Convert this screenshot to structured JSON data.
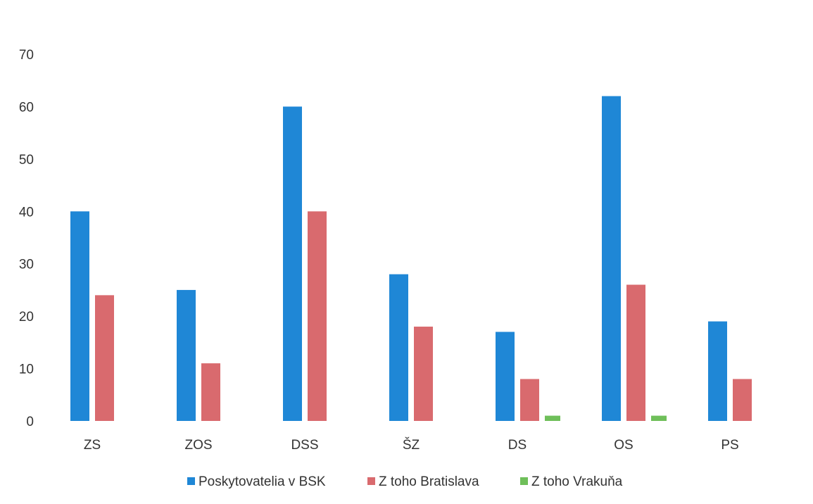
{
  "chart_data": {
    "type": "bar",
    "title": "",
    "xlabel": "",
    "ylabel": "",
    "ylim": [
      0,
      70
    ],
    "yticks": [
      0,
      10,
      20,
      30,
      40,
      50,
      60,
      70
    ],
    "grid": false,
    "legend_position": "bottom",
    "categories": [
      "ZS",
      "ZOS",
      "DSS",
      "ŠZ",
      "DS",
      "OS",
      "PS"
    ],
    "series": [
      {
        "name": "Poskytovatelia v BSK",
        "color": "#1f87d6",
        "values": [
          40,
          25,
          60,
          28,
          17,
          62,
          19
        ]
      },
      {
        "name": "Z toho Bratislava",
        "color": "#d96a6e",
        "values": [
          24,
          11,
          40,
          18,
          8,
          26,
          8
        ]
      },
      {
        "name": "Z toho Vrakuňa",
        "color": "#6fbf5a",
        "values": [
          0,
          0,
          0,
          0,
          1,
          1,
          0
        ]
      }
    ]
  }
}
